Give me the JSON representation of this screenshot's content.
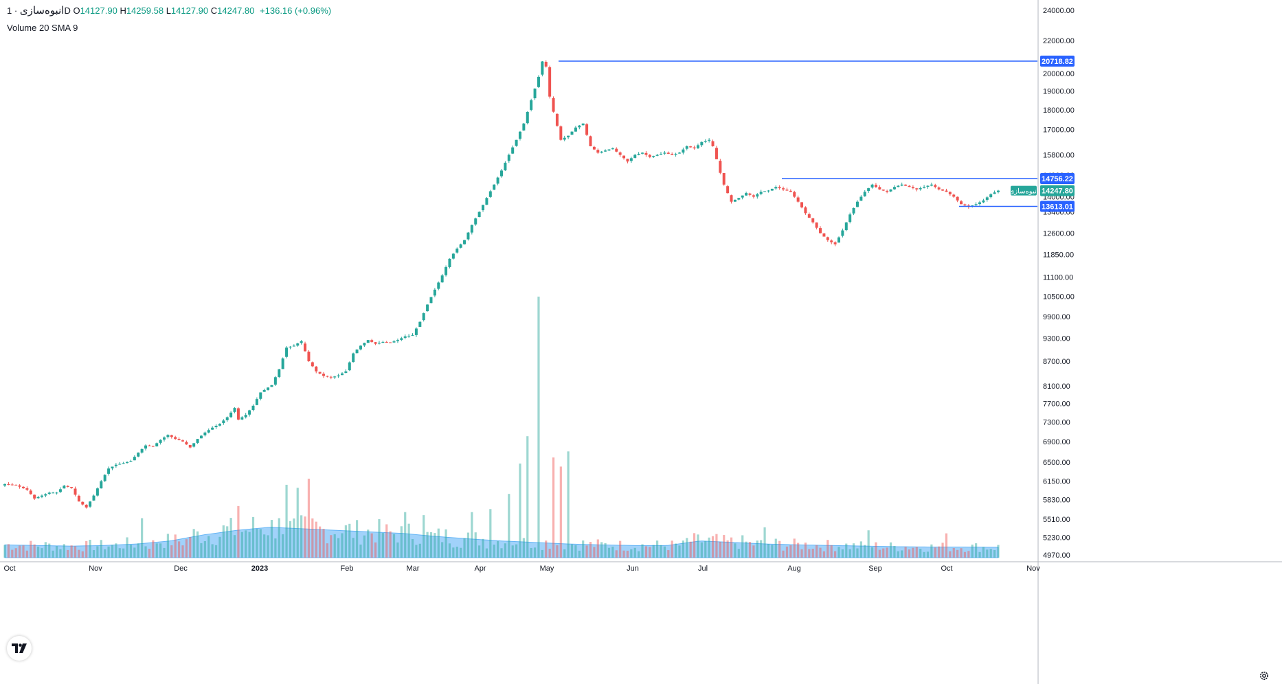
{
  "legend": {
    "symbol": "انبوه‌سازی",
    "interval": "1D",
    "open_label": "O",
    "open": "14127.90",
    "high_label": "H",
    "high": "14259.58",
    "low_label": "L",
    "low": "14127.90",
    "close_label": "C",
    "close": "14247.80",
    "change": "+136.16 (+0.96%)"
  },
  "volume_legend": "Volume 20 SMA 9",
  "colors": {
    "up": "#26a69a",
    "down": "#ef5350",
    "level": "#2962ff",
    "vol_sma": "#90caf9"
  },
  "chart_data": {
    "type": "candlestick",
    "y_axis": {
      "scale": "log",
      "ticks": [
        "24000.00",
        "22000.00",
        "20000.00",
        "19000.00",
        "18000.00",
        "17000.00",
        "15800.00",
        "14900.00",
        "14000.00",
        "13400.00",
        "12600.00",
        "11850.00",
        "11100.00",
        "10500.00",
        "9900.00",
        "9300.00",
        "8700.00",
        "8100.00",
        "7700.00",
        "7300.00",
        "6900.00",
        "6500.00",
        "6150.00",
        "5830.00",
        "5510.00",
        "5230.00",
        "4970.00"
      ]
    },
    "x_axis": {
      "ticks": [
        "Oct",
        "Nov",
        "Dec",
        "2023",
        "Feb",
        "Mar",
        "Apr",
        "May",
        "Jun",
        "Jul",
        "Aug",
        "Sep",
        "Oct",
        "Nov"
      ]
    },
    "levels": [
      {
        "price": "20718.82"
      },
      {
        "price": "14756.22"
      },
      {
        "price": "13613.01"
      }
    ],
    "last_price": {
      "value": "14247.80",
      "label": "انبوه‌سازی"
    },
    "path_points": [
      [
        0,
        6100
      ],
      [
        3,
        6080
      ],
      [
        6,
        6000
      ],
      [
        8,
        5850
      ],
      [
        10,
        5900
      ],
      [
        12,
        5950
      ],
      [
        14,
        5950
      ],
      [
        16,
        6070
      ],
      [
        18,
        6030
      ],
      [
        20,
        5800
      ],
      [
        22,
        5700
      ],
      [
        24,
        5900
      ],
      [
        26,
        6150
      ],
      [
        28,
        6380
      ],
      [
        30,
        6450
      ],
      [
        32,
        6480
      ],
      [
        34,
        6520
      ],
      [
        36,
        6680
      ],
      [
        38,
        6820
      ],
      [
        40,
        6800
      ],
      [
        42,
        6930
      ],
      [
        44,
        7030
      ],
      [
        46,
        6950
      ],
      [
        48,
        6900
      ],
      [
        50,
        6780
      ],
      [
        52,
        6950
      ],
      [
        54,
        7080
      ],
      [
        56,
        7180
      ],
      [
        58,
        7260
      ],
      [
        60,
        7400
      ],
      [
        62,
        7600
      ],
      [
        63,
        7350
      ],
      [
        65,
        7450
      ],
      [
        67,
        7650
      ],
      [
        69,
        7950
      ],
      [
        72,
        8120
      ],
      [
        74,
        8500
      ],
      [
        76,
        9050
      ],
      [
        78,
        9100
      ],
      [
        80,
        9220
      ],
      [
        82,
        8700
      ],
      [
        84,
        8450
      ],
      [
        86,
        8340
      ],
      [
        88,
        8300
      ],
      [
        90,
        8350
      ],
      [
        92,
        8450
      ],
      [
        94,
        8900
      ],
      [
        96,
        9100
      ],
      [
        98,
        9250
      ],
      [
        100,
        9150
      ],
      [
        102,
        9200
      ],
      [
        104,
        9180
      ],
      [
        106,
        9250
      ],
      [
        108,
        9350
      ],
      [
        110,
        9380
      ],
      [
        112,
        9750
      ],
      [
        114,
        10250
      ],
      [
        116,
        10700
      ],
      [
        118,
        11150
      ],
      [
        120,
        11700
      ],
      [
        122,
        12050
      ],
      [
        124,
        12350
      ],
      [
        126,
        12900
      ],
      [
        128,
        13400
      ],
      [
        130,
        13950
      ],
      [
        132,
        14500
      ],
      [
        134,
        15100
      ],
      [
        136,
        15800
      ],
      [
        138,
        16500
      ],
      [
        140,
        17300
      ],
      [
        142,
        18500
      ],
      [
        144,
        19800
      ],
      [
        145,
        20700
      ],
      [
        146,
        20400
      ],
      [
        147,
        18700
      ],
      [
        148,
        17900
      ],
      [
        150,
        16500
      ],
      [
        152,
        16700
      ],
      [
        154,
        17100
      ],
      [
        156,
        17300
      ],
      [
        158,
        16200
      ],
      [
        160,
        15900
      ],
      [
        162,
        16000
      ],
      [
        164,
        16100
      ],
      [
        166,
        15800
      ],
      [
        168,
        15500
      ],
      [
        170,
        15800
      ],
      [
        172,
        15900
      ],
      [
        174,
        15700
      ],
      [
        176,
        15800
      ],
      [
        178,
        15900
      ],
      [
        180,
        15800
      ],
      [
        182,
        15900
      ],
      [
        184,
        16200
      ],
      [
        186,
        16100
      ],
      [
        188,
        16400
      ],
      [
        190,
        16500
      ],
      [
        191,
        16200
      ],
      [
        192,
        15600
      ],
      [
        193,
        15000
      ],
      [
        194,
        14500
      ],
      [
        196,
        13800
      ],
      [
        198,
        13950
      ],
      [
        200,
        14150
      ],
      [
        202,
        14000
      ],
      [
        204,
        14200
      ],
      [
        206,
        14250
      ],
      [
        208,
        14400
      ],
      [
        210,
        14300
      ],
      [
        212,
        14200
      ],
      [
        214,
        13800
      ],
      [
        216,
        13350
      ],
      [
        218,
        13000
      ],
      [
        220,
        12600
      ],
      [
        222,
        12350
      ],
      [
        224,
        12200
      ],
      [
        226,
        12700
      ],
      [
        228,
        13300
      ],
      [
        230,
        13800
      ],
      [
        232,
        14200
      ],
      [
        234,
        14500
      ],
      [
        236,
        14300
      ],
      [
        238,
        14200
      ],
      [
        240,
        14400
      ],
      [
        242,
        14500
      ],
      [
        244,
        14400
      ],
      [
        246,
        14300
      ],
      [
        248,
        14400
      ],
      [
        250,
        14500
      ],
      [
        252,
        14300
      ],
      [
        254,
        14200
      ],
      [
        256,
        14000
      ],
      [
        258,
        13700
      ],
      [
        260,
        13600
      ],
      [
        262,
        13700
      ],
      [
        264,
        13850
      ],
      [
        266,
        14100
      ],
      [
        268,
        14247.8
      ]
    ],
    "volume": {
      "sma": [
        0.42,
        0.4,
        0.38,
        0.4,
        0.45,
        0.55,
        0.75,
        0.9,
        1.0,
        0.95,
        0.9,
        0.85,
        0.8,
        0.7,
        0.62,
        0.55,
        0.5,
        0.45,
        0.42,
        0.4,
        0.4,
        0.55,
        0.5,
        0.45,
        0.42,
        0.4,
        0.38,
        0.36,
        0.35,
        0.35,
        0.34
      ],
      "spikes": [
        [
          37,
          1.3
        ],
        [
          63,
          1.7
        ],
        [
          74,
          1.3
        ],
        [
          76,
          2.4
        ],
        [
          79,
          2.3
        ],
        [
          82,
          2.6
        ],
        [
          108,
          1.5
        ],
        [
          113,
          1.4
        ],
        [
          126,
          1.5
        ],
        [
          131,
          1.6
        ],
        [
          136,
          2.1
        ],
        [
          139,
          3.1
        ],
        [
          141,
          4.0
        ],
        [
          144,
          8.6
        ],
        [
          148,
          3.3
        ],
        [
          150,
          3.0
        ],
        [
          152,
          3.5
        ],
        [
          205,
          1.0
        ],
        [
          233,
          0.9
        ],
        [
          254,
          0.8
        ]
      ]
    }
  }
}
